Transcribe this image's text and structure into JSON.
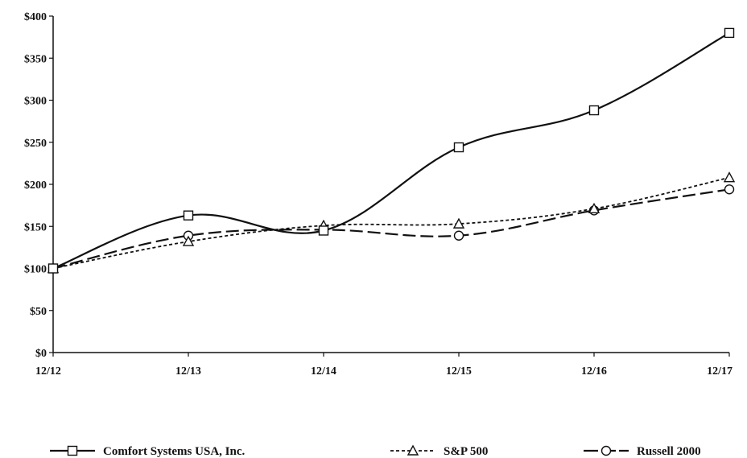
{
  "chart_data": {
    "type": "line",
    "title": "",
    "xlabel": "",
    "ylabel": "",
    "categories": [
      "12/12",
      "12/13",
      "12/14",
      "12/15",
      "12/16",
      "12/17"
    ],
    "y_ticks": [
      "$0",
      "$50",
      "$100",
      "$150",
      "$200",
      "$250",
      "$300",
      "$350",
      "$400"
    ],
    "ylim": [
      0,
      400
    ],
    "grid": false,
    "legend_position": "bottom",
    "series": [
      {
        "name": "Comfort Systems USA, Inc.",
        "values": [
          100,
          163,
          145,
          244,
          288,
          380
        ],
        "marker": "square",
        "dash": "solid",
        "color": "#111111"
      },
      {
        "name": "S&P 500",
        "values": [
          100,
          132,
          151,
          153,
          171,
          208
        ],
        "marker": "triangle",
        "dash": "dotted",
        "color": "#111111"
      },
      {
        "name": "Russell 2000",
        "values": [
          100,
          139,
          146,
          139,
          169,
          194
        ],
        "marker": "circle",
        "dash": "long-dash",
        "color": "#111111"
      }
    ]
  }
}
